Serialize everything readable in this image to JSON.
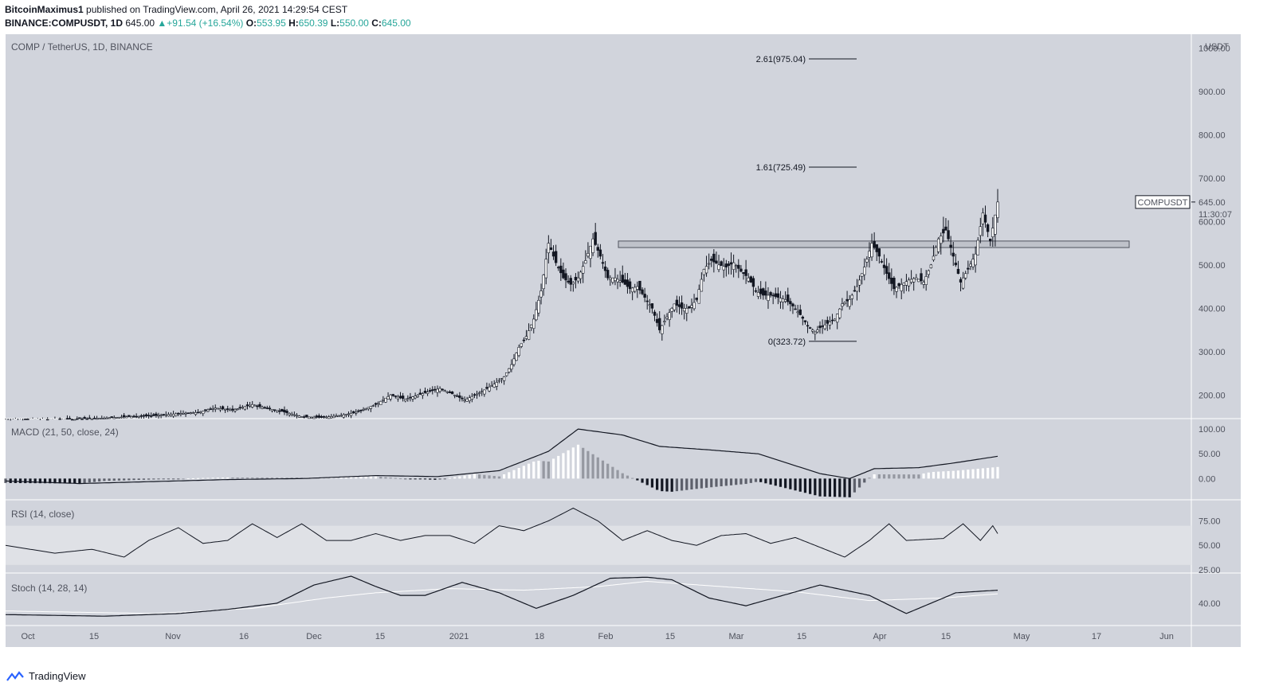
{
  "header": {
    "author": "BitcoinMaximus1",
    "published_text": "published on TradingView.com, April 26, 2021 14:29:54 CEST",
    "symbol": "BINANCE:COMPUSDT, 1D",
    "price": "645.00",
    "change": "+91.54 (+16.54%)",
    "o_label": "O:",
    "o_value": "553.95",
    "h_label": "H:",
    "h_value": "650.39",
    "l_label": "L:",
    "l_value": "550.00",
    "c_label": "C:",
    "c_value": "645.00"
  },
  "footer": {
    "brand": "TradingView"
  },
  "colors": {
    "background": "#d1d4dc",
    "candle_up": "#ffffff",
    "candle_down": "#131722",
    "rsi_band": "#dfe1e6"
  },
  "chart_data": {
    "type": "candlestick",
    "title": "COMP / TetherUS, 1D, BINANCE",
    "price_axis": {
      "unit": "USDT",
      "ticks": [
        "1000.00",
        "900.00",
        "800.00",
        "700.00",
        "600.00",
        "500.00",
        "400.00",
        "300.00",
        "200.00"
      ],
      "ylim": [
        150,
        1010
      ]
    },
    "x_ticks": [
      "Oct",
      "15",
      "Nov",
      "16",
      "Dec",
      "15",
      "2021",
      "18",
      "Feb",
      "15",
      "Mar",
      "15",
      "Apr",
      "15",
      "May",
      "17",
      "Jun"
    ],
    "last_price_label": {
      "symbol": "COMPUSDT",
      "price": "645.00",
      "countdown": "11:30:07"
    },
    "resistance_zone": [
      540,
      555
    ],
    "fib_levels": [
      {
        "label": "2.61(975.04)",
        "value": 975.04
      },
      {
        "label": "1.61(725.49)",
        "value": 725.49
      },
      {
        "label": "0(323.72)",
        "value": 323.72
      }
    ],
    "close_anchors": [
      [
        0,
        140
      ],
      [
        20,
        142
      ],
      [
        35,
        145
      ],
      [
        50,
        150
      ],
      [
        60,
        152
      ],
      [
        70,
        157
      ],
      [
        78,
        160
      ],
      [
        85,
        170
      ],
      [
        92,
        165
      ],
      [
        100,
        178
      ],
      [
        105,
        170
      ],
      [
        112,
        162
      ],
      [
        120,
        150
      ],
      [
        128,
        148
      ],
      [
        135,
        152
      ],
      [
        142,
        160
      ],
      [
        150,
        178
      ],
      [
        156,
        200
      ],
      [
        162,
        190
      ],
      [
        170,
        205
      ],
      [
        176,
        215
      ],
      [
        182,
        200
      ],
      [
        186,
        188
      ],
      [
        192,
        205
      ],
      [
        198,
        225
      ],
      [
        202,
        242
      ],
      [
        205,
        270
      ],
      [
        208,
        310
      ],
      [
        211,
        335
      ],
      [
        214,
        375
      ],
      [
        217,
        440
      ],
      [
        220,
        550
      ],
      [
        223,
        505
      ],
      [
        226,
        470
      ],
      [
        229,
        455
      ],
      [
        232,
        470
      ],
      [
        235,
        510
      ],
      [
        238,
        560
      ],
      [
        241,
        520
      ],
      [
        244,
        470
      ],
      [
        247,
        470
      ],
      [
        250,
        460
      ],
      [
        253,
        445
      ],
      [
        256,
        450
      ],
      [
        259,
        425
      ],
      [
        262,
        400
      ],
      [
        265,
        350
      ],
      [
        268,
        380
      ],
      [
        271,
        410
      ],
      [
        274,
        400
      ],
      [
        277,
        400
      ],
      [
        280,
        420
      ],
      [
        283,
        490
      ],
      [
        286,
        510
      ],
      [
        289,
        500
      ],
      [
        292,
        495
      ],
      [
        295,
        505
      ],
      [
        298,
        485
      ],
      [
        301,
        470
      ],
      [
        304,
        440
      ],
      [
        307,
        430
      ],
      [
        310,
        430
      ],
      [
        313,
        425
      ],
      [
        316,
        420
      ],
      [
        319,
        405
      ],
      [
        322,
        385
      ],
      [
        325,
        360
      ],
      [
        328,
        345
      ],
      [
        330,
        355
      ],
      [
        333,
        365
      ],
      [
        336,
        375
      ],
      [
        339,
        410
      ],
      [
        342,
        420
      ],
      [
        345,
        450
      ],
      [
        348,
        495
      ],
      [
        351,
        550
      ],
      [
        354,
        520
      ],
      [
        357,
        480
      ],
      [
        360,
        445
      ],
      [
        363,
        455
      ],
      [
        366,
        465
      ],
      [
        369,
        470
      ],
      [
        372,
        460
      ],
      [
        375,
        500
      ],
      [
        378,
        560
      ],
      [
        381,
        580
      ],
      [
        384,
        520
      ],
      [
        387,
        460
      ],
      [
        390,
        490
      ],
      [
        393,
        525
      ],
      [
        396,
        620
      ],
      [
        399,
        555
      ],
      [
        402,
        645
      ]
    ],
    "series": [
      {
        "name": "MACD",
        "pane": "MACD (21, 50, close, 24)",
        "ticks": [
          "100.00",
          "50.00",
          "0.00"
        ],
        "ylim": [
          -30,
          105
        ],
        "anchors": [
          [
            0,
            -5
          ],
          [
            30,
            -10
          ],
          [
            60,
            -6
          ],
          [
            90,
            -2
          ],
          [
            120,
            0
          ],
          [
            150,
            6
          ],
          [
            175,
            4
          ],
          [
            200,
            16
          ],
          [
            220,
            55
          ],
          [
            232,
            100
          ],
          [
            250,
            88
          ],
          [
            265,
            65
          ],
          [
            285,
            58
          ],
          [
            305,
            50
          ],
          [
            330,
            10
          ],
          [
            342,
            0
          ],
          [
            352,
            20
          ],
          [
            370,
            22
          ],
          [
            385,
            32
          ],
          [
            402,
            45
          ]
        ]
      },
      {
        "name": "Signal",
        "anchors": [
          [
            0,
            0
          ],
          [
            40,
            -6
          ],
          [
            80,
            -4
          ],
          [
            120,
            -1
          ],
          [
            160,
            5
          ],
          [
            190,
            6
          ],
          [
            215,
            25
          ],
          [
            232,
            62
          ],
          [
            250,
            82
          ],
          [
            270,
            78
          ],
          [
            300,
            58
          ],
          [
            330,
            30
          ],
          [
            350,
            15
          ],
          [
            375,
            18
          ],
          [
            402,
            32
          ]
        ]
      },
      {
        "name": "RSI",
        "pane": "RSI (14, close)",
        "ticks": [
          "75.00",
          "50.00",
          "25.00"
        ],
        "ylim": [
          25,
          90
        ],
        "band": [
          30,
          70
        ],
        "anchors": [
          [
            0,
            50
          ],
          [
            20,
            42
          ],
          [
            35,
            46
          ],
          [
            48,
            38
          ],
          [
            58,
            55
          ],
          [
            70,
            68
          ],
          [
            80,
            52
          ],
          [
            90,
            55
          ],
          [
            100,
            72
          ],
          [
            110,
            58
          ],
          [
            120,
            72
          ],
          [
            130,
            55
          ],
          [
            140,
            55
          ],
          [
            150,
            62
          ],
          [
            160,
            55
          ],
          [
            170,
            60
          ],
          [
            180,
            60
          ],
          [
            190,
            52
          ],
          [
            200,
            70
          ],
          [
            210,
            65
          ],
          [
            220,
            75
          ],
          [
            230,
            88
          ],
          [
            240,
            75
          ],
          [
            250,
            55
          ],
          [
            260,
            65
          ],
          [
            270,
            55
          ],
          [
            280,
            50
          ],
          [
            290,
            60
          ],
          [
            300,
            62
          ],
          [
            310,
            52
          ],
          [
            320,
            58
          ],
          [
            330,
            48
          ],
          [
            340,
            38
          ],
          [
            350,
            55
          ],
          [
            358,
            72
          ],
          [
            365,
            55
          ],
          [
            380,
            57
          ],
          [
            388,
            72
          ],
          [
            395,
            55
          ],
          [
            400,
            70
          ],
          [
            402,
            62
          ]
        ]
      },
      {
        "name": "Stoch %K",
        "pane": "Stoch (14, 28, 14)",
        "ticks": [
          "40.00"
        ],
        "ylim": [
          0,
          95
        ],
        "anchors": [
          [
            0,
            18
          ],
          [
            40,
            15
          ],
          [
            70,
            20
          ],
          [
            90,
            28
          ],
          [
            110,
            40
          ],
          [
            125,
            75
          ],
          [
            140,
            92
          ],
          [
            150,
            72
          ],
          [
            160,
            55
          ],
          [
            170,
            55
          ],
          [
            185,
            80
          ],
          [
            200,
            60
          ],
          [
            215,
            30
          ],
          [
            230,
            55
          ],
          [
            245,
            88
          ],
          [
            260,
            90
          ],
          [
            270,
            85
          ],
          [
            285,
            50
          ],
          [
            300,
            35
          ],
          [
            315,
            55
          ],
          [
            330,
            75
          ],
          [
            340,
            65
          ],
          [
            350,
            55
          ],
          [
            365,
            20
          ],
          [
            375,
            40
          ],
          [
            385,
            60
          ],
          [
            402,
            65
          ]
        ]
      },
      {
        "name": "Stoch %D",
        "anchors": [
          [
            0,
            25
          ],
          [
            60,
            20
          ],
          [
            100,
            30
          ],
          [
            130,
            50
          ],
          [
            150,
            60
          ],
          [
            180,
            68
          ],
          [
            210,
            65
          ],
          [
            240,
            72
          ],
          [
            260,
            82
          ],
          [
            290,
            72
          ],
          [
            320,
            62
          ],
          [
            350,
            45
          ],
          [
            380,
            50
          ],
          [
            402,
            58
          ]
        ]
      }
    ]
  }
}
